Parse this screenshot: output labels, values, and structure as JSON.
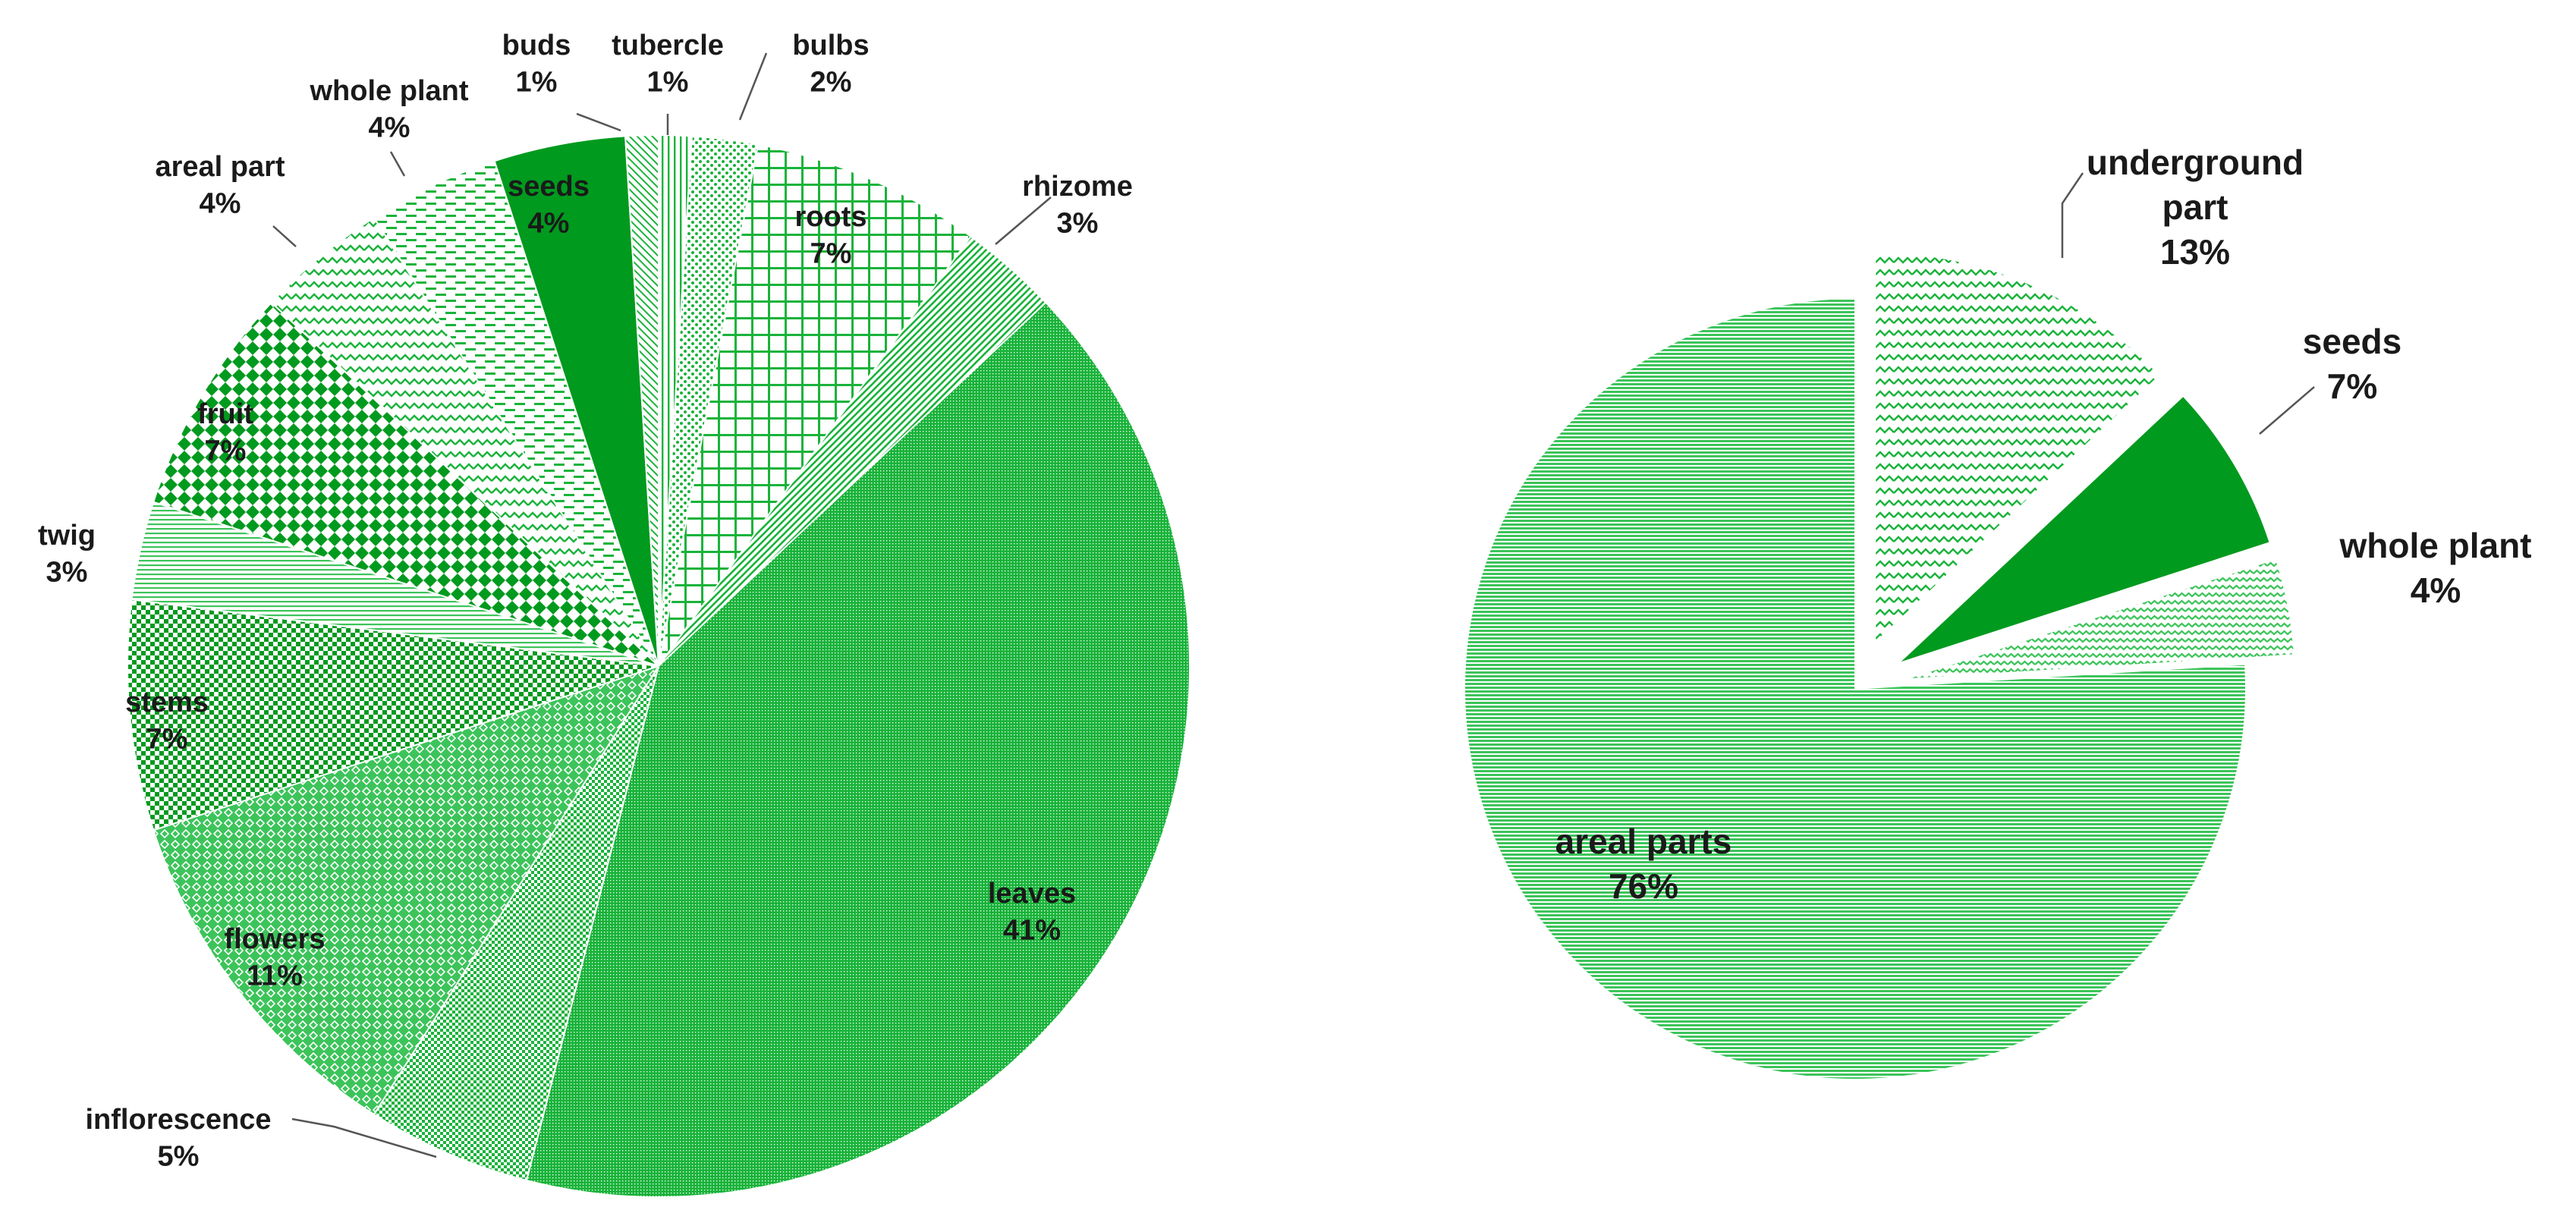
{
  "colors": {
    "dark": "#009a1e",
    "medium": "#19b33a",
    "light": "#3cc45a",
    "background": "#ffffff",
    "leader": "#555555"
  },
  "chart_data": [
    {
      "type": "pie",
      "title": "",
      "start_angle_deg": 0,
      "slices": [
        {
          "label": "tubercle",
          "value": 1,
          "pct_label": "1%",
          "pattern": "vlines"
        },
        {
          "label": "bulbs",
          "value": 2,
          "pct_label": "2%",
          "pattern": "dots-dense"
        },
        {
          "label": "roots",
          "value": 7,
          "pct_label": "7%",
          "pattern": "grid"
        },
        {
          "label": "rhizome",
          "value": 3,
          "pct_label": "3%",
          "pattern": "dlines"
        },
        {
          "label": "leaves",
          "value": 41,
          "pct_label": "41%",
          "pattern": "fine-dots"
        },
        {
          "label": "inflorescence",
          "value": 5,
          "pct_label": "5%",
          "pattern": "smallcheck"
        },
        {
          "label": "flowers",
          "value": 11,
          "pct_label": "11%",
          "pattern": "diamond-grid"
        },
        {
          "label": "stems",
          "value": 7,
          "pct_label": "7%",
          "pattern": "checker"
        },
        {
          "label": "twig",
          "value": 3,
          "pct_label": "3%",
          "pattern": "hlines-light"
        },
        {
          "label": "fruit",
          "value": 7,
          "pct_label": "7%",
          "pattern": "bigcheck"
        },
        {
          "label": "areal part",
          "value": 4,
          "pct_label": "4%",
          "pattern": "zigzag"
        },
        {
          "label": "whole plant",
          "value": 4,
          "pct_label": "4%",
          "pattern": "dashes"
        },
        {
          "label": "seeds",
          "value": 4,
          "pct_label": "4%",
          "pattern": "solid-dark"
        },
        {
          "label": "buds",
          "value": 1,
          "pct_label": "1%",
          "pattern": "diag"
        }
      ]
    },
    {
      "type": "pie",
      "title": "",
      "start_angle_deg": 0,
      "exploded": [
        "underground part",
        "seeds",
        "whole plant"
      ],
      "slices": [
        {
          "label": "underground part",
          "value": 13,
          "pct_label": "13%",
          "pattern": "zigzag"
        },
        {
          "label": "seeds",
          "value": 7,
          "pct_label": "7%",
          "pattern": "solid-dark"
        },
        {
          "label": "whole plant",
          "value": 4,
          "pct_label": "4%",
          "pattern": "wave"
        },
        {
          "label": "areal parts",
          "value": 76,
          "pct_label": "76%",
          "pattern": "hlines"
        }
      ]
    }
  ]
}
